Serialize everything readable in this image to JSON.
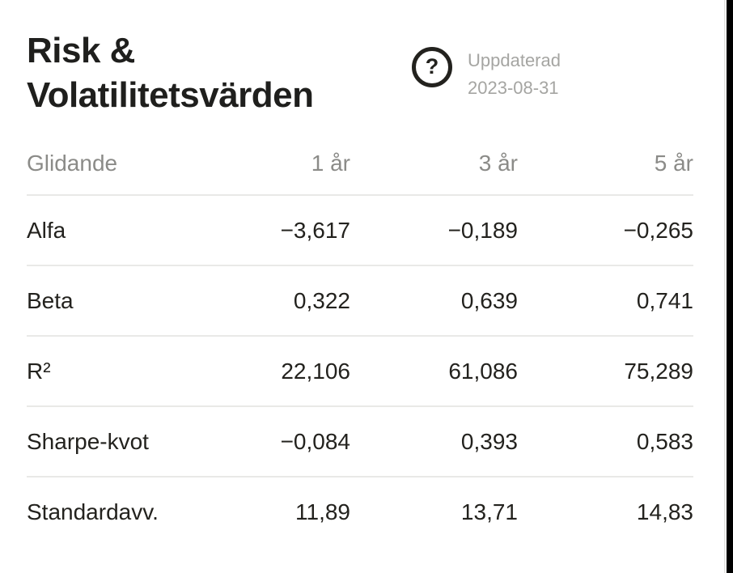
{
  "header": {
    "title_line1": "Risk &",
    "title_line2": "Volatilitetsvärden",
    "help_icon_glyph": "?",
    "updated_label": "Uppdaterad",
    "updated_date": "2023-08-31"
  },
  "table": {
    "header": {
      "label": "Glidande",
      "columns": [
        "1 år",
        "3 år",
        "5 år"
      ]
    },
    "rows": [
      {
        "label": "Alfa",
        "values": [
          "−3,617",
          "−0,189",
          "−0,265"
        ]
      },
      {
        "label": "Beta",
        "values": [
          "0,322",
          "0,639",
          "0,741"
        ]
      },
      {
        "label": "R²",
        "values": [
          "22,106",
          "61,086",
          "75,289"
        ]
      },
      {
        "label": "Sharpe-kvot",
        "values": [
          "−0,084",
          "0,393",
          "0,583"
        ]
      },
      {
        "label": "Standardavv.",
        "values": [
          "11,89",
          "13,71",
          "14,83"
        ]
      }
    ]
  },
  "colors": {
    "text_dark": "#23221e",
    "title_dark": "#1f1f1d",
    "table_header_gray": "#8b8b88",
    "updated_gray": "#a5a5a2",
    "divider": "#e9e9e7",
    "edge_black": "#000000"
  }
}
